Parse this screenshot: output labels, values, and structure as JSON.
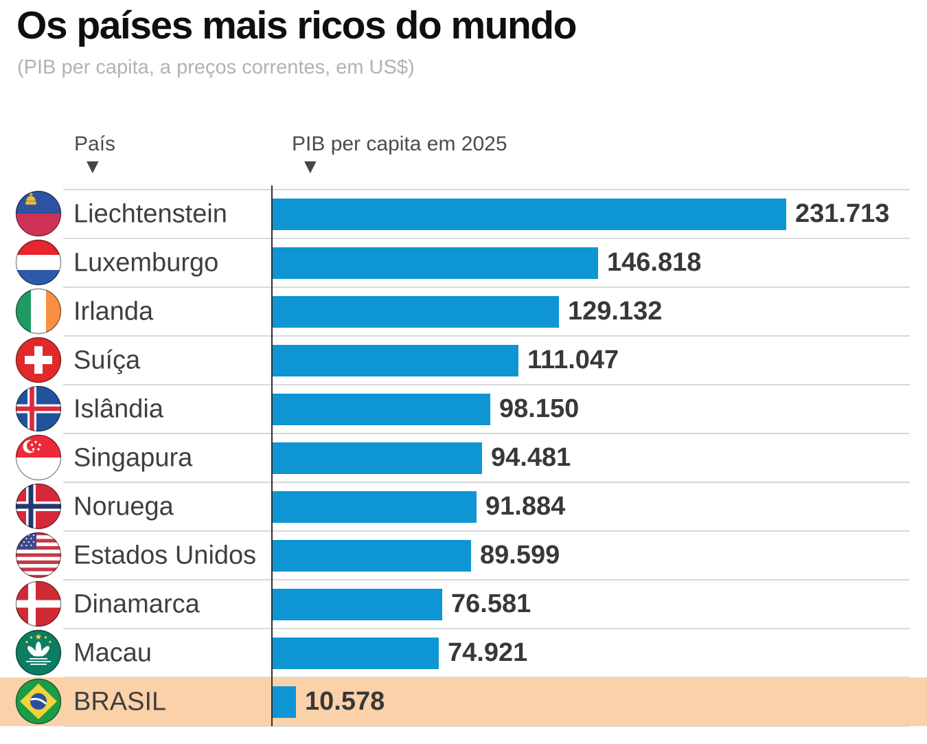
{
  "header": {
    "title": "Os países mais ricos do mundo",
    "subtitle": "(PIB per capita, a preços correntes, em US$)"
  },
  "columns": {
    "country_label": "País",
    "value_label": "PIB per capita em 2025"
  },
  "icons": {
    "sort_indicator": "▼",
    "flags": [
      "flag-liechtenstein",
      "flag-luxemburgo",
      "flag-irlanda",
      "flag-suica",
      "flag-islandia",
      "flag-singapura",
      "flag-noruega",
      "flag-estados-unidos",
      "flag-dinamarca",
      "flag-macau",
      "flag-brasil"
    ]
  },
  "chart_data": {
    "type": "bar",
    "orientation": "horizontal",
    "title": "Os países mais ricos do mundo",
    "subtitle": "(PIB per capita, a preços correntes, em US$)",
    "x_header": "País",
    "value_header": "PIB per capita em 2025",
    "categories": [
      "Liechtenstein",
      "Luxemburgo",
      "Irlanda",
      "Suíça",
      "Islândia",
      "Singapura",
      "Noruega",
      "Estados Unidos",
      "Dinamarca",
      "Macau",
      "BRASIL"
    ],
    "values": [
      231713,
      146818,
      129132,
      111047,
      98150,
      94481,
      91884,
      89599,
      76581,
      74921,
      10578
    ],
    "value_labels": [
      "231.713",
      "146.818",
      "129.132",
      "111.047",
      "98.150",
      "94.481",
      "91.884",
      "89.599",
      "76.581",
      "74.921",
      "10.578"
    ],
    "highlight_category": "BRASIL",
    "colors": {
      "bar": "#0e95d3",
      "highlight_row_bg": "#fbd1a9",
      "axis_line": "#2f2f2f",
      "separator": "#d9d9d9",
      "title_text": "#0f0f0f",
      "subtitle_text": "#b2b2b2",
      "label_text": "#3f3f3f",
      "value_text": "#383838"
    },
    "legend": null,
    "grid": false
  }
}
